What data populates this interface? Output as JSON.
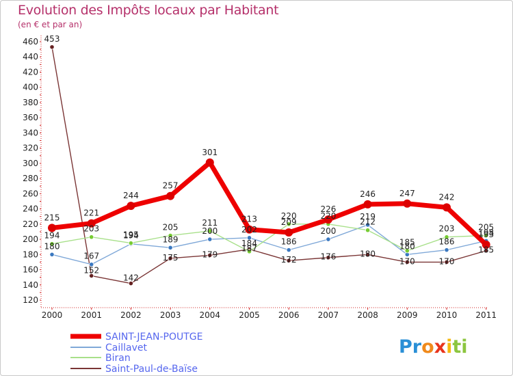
{
  "chart_data": {
    "type": "line",
    "title": "Evolution des Impôts locaux par Habitant",
    "subtitle": "(en € et par an)",
    "xlabel": "",
    "ylabel": "",
    "ylim": [
      120,
      460
    ],
    "y_ticks": [
      120,
      140,
      160,
      180,
      200,
      220,
      240,
      260,
      280,
      300,
      320,
      340,
      360,
      380,
      400,
      420,
      440,
      460
    ],
    "grid": false,
    "legend_position": "bottom-left",
    "categories": [
      "2000",
      "2001",
      "2002",
      "2003",
      "2004",
      "2005",
      "2006",
      "2007",
      "2008",
      "2009",
      "2010",
      "2011"
    ],
    "series": [
      {
        "name": "SAINT-JEAN-POUTGE",
        "color": "#ee0000",
        "marker_color": "#dd0000",
        "values": [
          215,
          221,
          244,
          257,
          301,
          213,
          209,
          226,
          246,
          247,
          242,
          193
        ],
        "labels": [
          "215",
          "221",
          "244",
          "257",
          "301",
          "213",
          "209",
          "226",
          "246",
          "247",
          "242",
          "193"
        ]
      },
      {
        "name": "Caillavet",
        "color": "#7fa8d8",
        "marker_color": "#3a78c0",
        "values": [
          180,
          167,
          194,
          189,
          200,
          202,
          186,
          200,
          219,
          180,
          186,
          198
        ],
        "labels": [
          "180",
          "167",
          "194",
          "189",
          "200",
          "202",
          "186",
          "200",
          "219",
          "180",
          "186",
          "198"
        ]
      },
      {
        "name": "Biran",
        "color": "#a8e08a",
        "marker_color": "#77cc33",
        "values": [
          194,
          203,
          195,
          205,
          211,
          184,
          220,
          220,
          212,
          185,
          203,
          205
        ],
        "labels": [
          "194",
          "203",
          "195",
          "205",
          "211",
          "184",
          "220",
          "220",
          "212",
          "185",
          "203",
          "205"
        ]
      },
      {
        "name": "Saint-Paul-de-Baïse",
        "color": "#7a3535",
        "marker_color": "#662222",
        "values": [
          453,
          152,
          142,
          175,
          179,
          187,
          172,
          176,
          180,
          170,
          170,
          185
        ],
        "labels": [
          "453",
          "152",
          "142",
          "175",
          "179",
          "187",
          "172",
          "176",
          "180",
          "170",
          "170",
          "185"
        ]
      }
    ]
  },
  "brand": {
    "text": "Proxiti",
    "chars": [
      "P",
      "r",
      "o",
      "x",
      "i",
      "t",
      "i"
    ],
    "colors": [
      "#2a8fd6",
      "#2a8fd6",
      "#f08a1c",
      "#e8341c",
      "#f5b80f",
      "#8cc63f",
      "#8cc63f"
    ]
  }
}
